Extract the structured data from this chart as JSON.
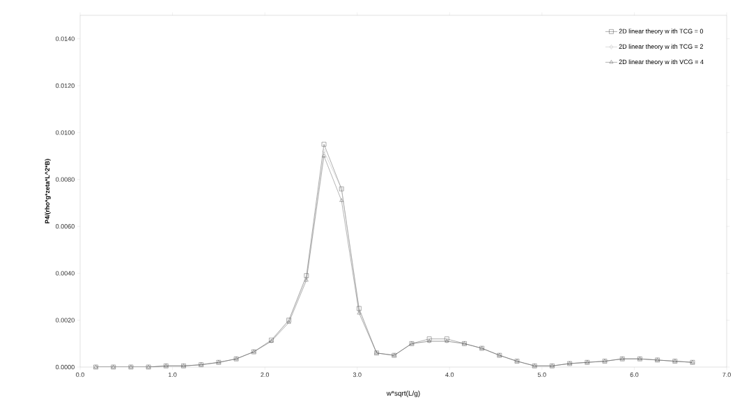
{
  "chart_data": {
    "type": "line",
    "xlabel": "w*sqrt(L/g)",
    "ylabel": "P4/(rho*g*zeta*L^2*B)",
    "x": [
      0.17,
      0.36,
      0.55,
      0.74,
      0.93,
      1.12,
      1.31,
      1.5,
      1.69,
      1.88,
      2.07,
      2.26,
      2.45,
      2.64,
      2.83,
      3.02,
      3.21,
      3.4,
      3.59,
      3.78,
      3.97,
      4.16,
      4.35,
      4.54,
      4.73,
      4.92,
      5.11,
      5.3,
      5.49,
      5.68,
      5.87,
      6.06,
      6.25,
      6.44,
      6.63
    ],
    "series": [
      {
        "name": "2D linear theory w ith TCG = 0",
        "color": "#333333",
        "marker": "square",
        "values": [
          0,
          0,
          0,
          0,
          5e-05,
          5e-05,
          0.0001,
          0.0002,
          0.00035,
          0.00065,
          0.00115,
          0.002,
          0.0039,
          0.0095,
          0.0076,
          0.0025,
          0.0006,
          0.0005,
          0.001,
          0.0012,
          0.0012,
          0.001,
          0.0008,
          0.0005,
          0.00025,
          5e-05,
          5e-05,
          0.00015,
          0.0002,
          0.00025,
          0.00035,
          0.00035,
          0.0003,
          0.00025,
          0.0002
        ]
      },
      {
        "name": "2D linear theory w ith TCG = 2",
        "color": "#aaaaaa",
        "marker": "diamond",
        "values": [
          0,
          0,
          0,
          0,
          5e-05,
          5e-05,
          0.0001,
          0.0002,
          0.00035,
          0.00065,
          0.0011,
          0.002,
          0.0038,
          0.0092,
          0.0076,
          0.0024,
          0.0006,
          0.0005,
          0.001,
          0.0011,
          0.0011,
          0.001,
          0.0008,
          0.0005,
          0.00025,
          5e-05,
          5e-05,
          0.00015,
          0.0002,
          0.00025,
          0.00035,
          0.00035,
          0.0003,
          0.00025,
          0.0002
        ]
      },
      {
        "name": "2D linear theory w ith VCG = 4",
        "color": "#444444",
        "marker": "triangle",
        "values": [
          0,
          0,
          0,
          0,
          5e-05,
          5e-05,
          0.0001,
          0.0002,
          0.00035,
          0.00065,
          0.0011,
          0.0019,
          0.0037,
          0.009,
          0.0071,
          0.0023,
          0.0006,
          0.0005,
          0.001,
          0.0011,
          0.0011,
          0.001,
          0.0008,
          0.0005,
          0.00025,
          5e-05,
          5e-05,
          0.00015,
          0.0002,
          0.00025,
          0.00035,
          0.00035,
          0.0003,
          0.00025,
          0.0002
        ]
      }
    ],
    "xlim": [
      0,
      7
    ],
    "ylim": [
      0,
      0.015
    ],
    "xticks": [
      {
        "value": 0,
        "label": "0.0"
      },
      {
        "value": 1,
        "label": "1.0"
      },
      {
        "value": 2,
        "label": "2.0"
      },
      {
        "value": 3,
        "label": "3.0"
      },
      {
        "value": 4,
        "label": "4.0"
      },
      {
        "value": 5,
        "label": "5.0"
      },
      {
        "value": 6,
        "label": "6.0"
      },
      {
        "value": 7,
        "label": "7.0"
      }
    ],
    "yticks": [
      {
        "value": 0,
        "label": "0.0000"
      },
      {
        "value": 0.002,
        "label": "0.0020"
      },
      {
        "value": 0.004,
        "label": "0.0040"
      },
      {
        "value": 0.006,
        "label": "0.0060"
      },
      {
        "value": 0.008,
        "label": "0.0080"
      },
      {
        "value": 0.01,
        "label": "0.0100"
      },
      {
        "value": 0.012,
        "label": "0.0120"
      },
      {
        "value": 0.014,
        "label": "0.0140"
      }
    ],
    "legend": "top right",
    "line_style": "solid"
  }
}
